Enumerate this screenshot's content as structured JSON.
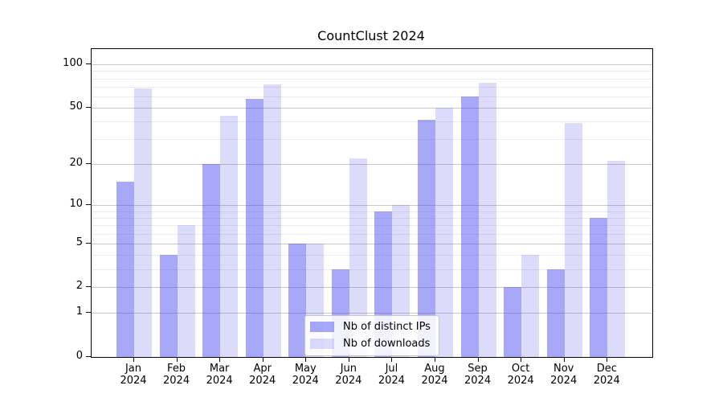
{
  "chart_data": {
    "type": "bar",
    "title": "CountClust 2024",
    "categories": [
      "Jan",
      "Feb",
      "Mar",
      "Apr",
      "May",
      "Jun",
      "Jul",
      "Aug",
      "Sep",
      "Oct",
      "Nov",
      "Dec"
    ],
    "category_sub": "2024",
    "series": [
      {
        "name": "Nb of distinct IPs",
        "color_on_white": "#a8a8f8",
        "fill": "rgba(62,62,239,0.45)",
        "values": [
          15,
          4,
          20,
          58,
          5,
          3,
          9,
          41,
          60,
          2,
          3,
          8
        ]
      },
      {
        "name": "Nb of downloads",
        "color_on_white": "#dcdcfa",
        "fill": "rgba(80,80,230,0.2)",
        "values": [
          68,
          7,
          44,
          73,
          5,
          22,
          10,
          50,
          75,
          4,
          39,
          21
        ]
      }
    ],
    "y_axis": {
      "scale": "log10(value+1)",
      "major_ticks": [
        100,
        50,
        20,
        10,
        5,
        2,
        1,
        0
      ],
      "minor_ticks": [
        90,
        80,
        70,
        60,
        40,
        30,
        9,
        8,
        7,
        6,
        4,
        3
      ]
    },
    "grid": {
      "on": true,
      "major_color": "#c8c8c8",
      "minor_color": "#ececec"
    },
    "legend": {
      "position": "bottom-center",
      "entries": [
        "Nb of distinct IPs",
        "Nb of downloads"
      ]
    },
    "axis_color": "#000000",
    "background": "#ffffff"
  }
}
